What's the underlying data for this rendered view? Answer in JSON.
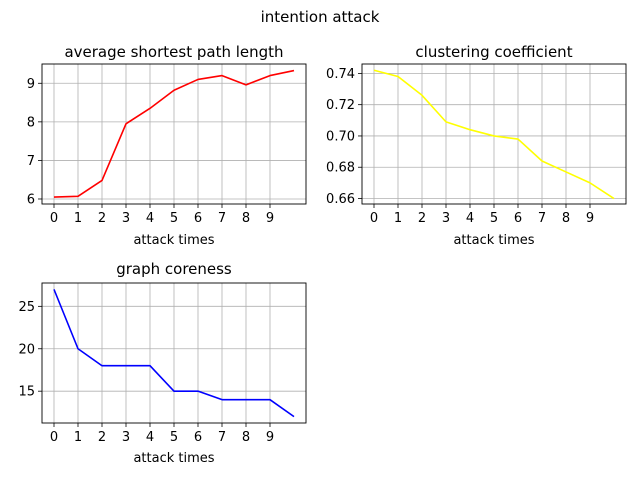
{
  "figure_title": "intention attack",
  "chart_data": [
    {
      "type": "line",
      "title": "average shortest path length",
      "xlabel": "attack times",
      "ylabel": "",
      "x": [
        0,
        1,
        2,
        3,
        4,
        5,
        6,
        7,
        8,
        9,
        10
      ],
      "xticks": [
        0,
        1,
        2,
        3,
        4,
        5,
        6,
        7,
        8,
        9
      ],
      "yticks": [
        6,
        7,
        8,
        9
      ],
      "ylim": [
        5.87,
        9.5
      ],
      "xlim": [
        -0.5,
        10.5
      ],
      "grid": true,
      "color": "#ff0000",
      "series": [
        {
          "values": [
            6.05,
            6.07,
            6.48,
            7.95,
            8.35,
            8.82,
            9.1,
            9.2,
            8.96,
            9.2,
            9.33
          ]
        }
      ]
    },
    {
      "type": "line",
      "title": "clustering coefficient",
      "xlabel": "attack times",
      "ylabel": "",
      "x": [
        0,
        1,
        2,
        3,
        4,
        5,
        6,
        7,
        8,
        9,
        10
      ],
      "xticks": [
        0,
        1,
        2,
        3,
        4,
        5,
        6,
        7,
        8,
        9
      ],
      "yticks": [
        "0.66",
        "0.68",
        "0.70",
        "0.72",
        "0.74"
      ],
      "ylim": [
        0.6565,
        0.746
      ],
      "xlim": [
        -0.5,
        10.5
      ],
      "grid": true,
      "color": "#ffff00",
      "series": [
        {
          "values": [
            0.742,
            0.738,
            0.726,
            0.709,
            0.704,
            0.7,
            0.698,
            0.684,
            0.677,
            0.67,
            0.66
          ]
        }
      ]
    },
    {
      "type": "line",
      "title": "graph coreness",
      "xlabel": "attack times",
      "ylabel": "",
      "x": [
        0,
        1,
        2,
        3,
        4,
        5,
        6,
        7,
        8,
        9,
        10
      ],
      "xticks": [
        0,
        1,
        2,
        3,
        4,
        5,
        6,
        7,
        8,
        9
      ],
      "yticks": [
        15,
        20,
        25
      ],
      "ylim": [
        11.25,
        27.75
      ],
      "xlim": [
        -0.5,
        10.5
      ],
      "grid": true,
      "color": "#0000ff",
      "series": [
        {
          "values": [
            27,
            20,
            18,
            18,
            18,
            15,
            15,
            14,
            14,
            14,
            12
          ]
        }
      ]
    }
  ]
}
